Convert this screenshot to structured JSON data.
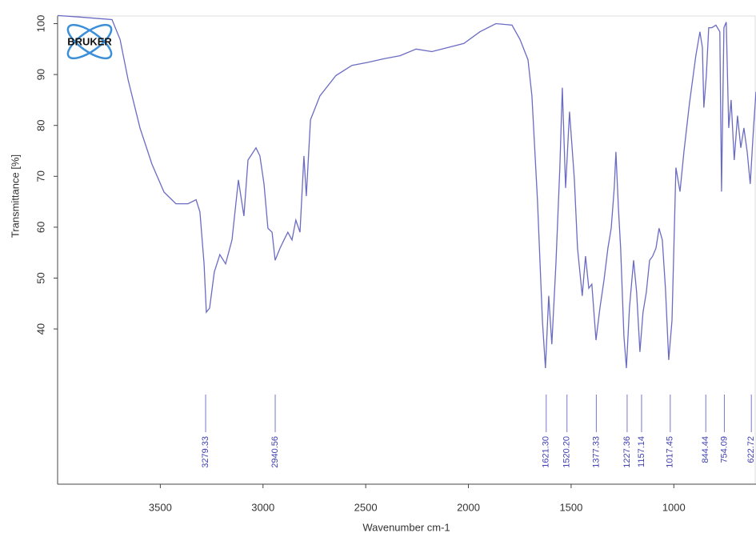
{
  "chart_data": {
    "type": "line",
    "logo": "BRUKER",
    "xlabel": "Wavenumber cm-1",
    "ylabel": "Transmittance [%]",
    "color": "#6b6bc4",
    "x": [
      4000,
      3891,
      3735,
      3696,
      3657,
      3599,
      3541,
      3482,
      3424,
      3365,
      3326,
      3307,
      3287,
      3276,
      3260,
      3237,
      3210,
      3182,
      3151,
      3120,
      3093,
      3073,
      3034,
      3015,
      2995,
      2976,
      2956,
      2941,
      2917,
      2898,
      2879,
      2859,
      2840,
      2820,
      2801,
      2789,
      2769,
      2723,
      2645,
      2567,
      2489,
      2411,
      2333,
      2255,
      2178,
      2100,
      2022,
      1944,
      1866,
      1788,
      1749,
      1710,
      1691,
      1664,
      1640,
      1625,
      1609,
      1594,
      1574,
      1555,
      1543,
      1527,
      1508,
      1484,
      1469,
      1446,
      1430,
      1414,
      1399,
      1379,
      1360,
      1340,
      1321,
      1305,
      1290,
      1282,
      1270,
      1259,
      1243,
      1231,
      1216,
      1196,
      1181,
      1165,
      1150,
      1134,
      1118,
      1103,
      1087,
      1072,
      1056,
      1041,
      1025,
      1009,
      990,
      970,
      951,
      924,
      893,
      873,
      861,
      854,
      842,
      830,
      815,
      795,
      776,
      768,
      756,
      745,
      733,
      721,
      706,
      690,
      674,
      659,
      643,
      628,
      612,
      600
    ],
    "values": [
      101.6,
      101.3,
      100.8,
      96.9,
      89.0,
      79.5,
      72.4,
      66.9,
      64.6,
      64.6,
      65.4,
      63.0,
      52.8,
      43.3,
      44.1,
      51.2,
      54.6,
      52.8,
      57.5,
      69.3,
      62.2,
      73.2,
      75.6,
      74.0,
      68.5,
      59.8,
      59.0,
      53.5,
      55.9,
      57.5,
      59.0,
      57.5,
      61.4,
      59.0,
      74.0,
      66.1,
      81.1,
      85.8,
      89.8,
      91.8,
      92.4,
      93.1,
      93.7,
      95.0,
      94.5,
      95.3,
      96.1,
      98.4,
      100.0,
      99.7,
      96.9,
      92.9,
      85.8,
      65.4,
      41.7,
      32.3,
      46.5,
      37.0,
      52.8,
      71.7,
      87.4,
      67.7,
      82.7,
      69.3,
      55.9,
      46.5,
      54.3,
      48.0,
      48.8,
      37.8,
      44.1,
      49.6,
      55.9,
      59.8,
      67.7,
      74.8,
      63.8,
      55.9,
      38.6,
      32.3,
      44.1,
      53.5,
      47.2,
      35.5,
      43.3,
      47.2,
      53.5,
      54.3,
      55.9,
      59.8,
      57.5,
      48.0,
      33.9,
      41.7,
      71.7,
      67.0,
      74.8,
      84.3,
      93.7,
      98.4,
      95.3,
      83.5,
      89.8,
      99.2,
      99.2,
      99.7,
      98.4,
      67.0,
      99.2,
      100.3,
      79.5,
      85.0,
      73.2,
      81.9,
      75.6,
      79.5,
      74.8,
      68.5,
      79.5,
      86.6
    ],
    "xlim": [
      4000,
      600
    ],
    "ylim": [
      9.5,
      101.5
    ],
    "xticks": [
      3500,
      3000,
      2500,
      2000,
      1500,
      1000
    ],
    "yticks": [
      40,
      50,
      60,
      70,
      80,
      90,
      100
    ],
    "peaks": [
      3279.33,
      2940.56,
      1621.3,
      1520.2,
      1377.33,
      1227.36,
      1157.14,
      1017.45,
      844.44,
      754.09,
      622.72
    ],
    "peak_labels": [
      "3279.33",
      "2940.56",
      "1621.30",
      "1520.20",
      "1377.33",
      "1227.36",
      "1157.14",
      "1017.45",
      "844.44",
      "754.09",
      "622.72"
    ]
  }
}
